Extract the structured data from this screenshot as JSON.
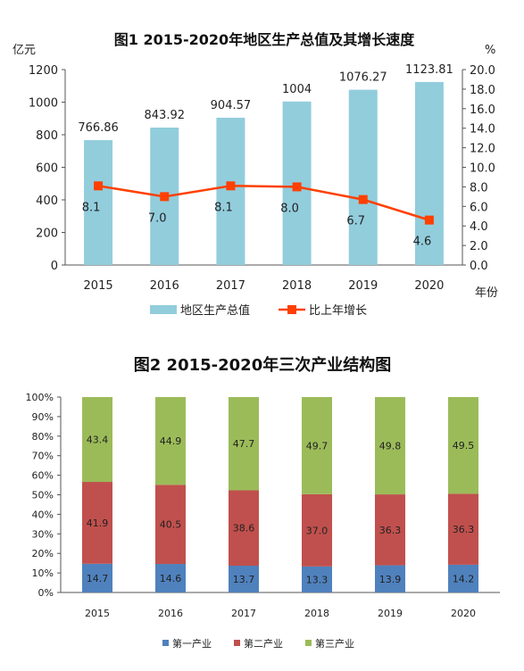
{
  "chart_data": [
    {
      "type": "bar",
      "title": "图1  2015-2020年地区生产总值及其增长速度",
      "ylabel": "亿元",
      "y2label": "%",
      "xlabel": "年份",
      "categories": [
        "2015",
        "2016",
        "2017",
        "2018",
        "2019",
        "2020"
      ],
      "ylim": [
        0,
        1200
      ],
      "yticks": [
        "0",
        "200",
        "400",
        "600",
        "800",
        "1000",
        "1200"
      ],
      "y2lim": [
        0,
        20
      ],
      "y2ticks": [
        "0.0",
        "2.0",
        "4.0",
        "6.0",
        "8.0",
        "10.0",
        "12.0",
        "14.0",
        "16.0",
        "18.0",
        "20.0"
      ],
      "grid": false,
      "legend_position": "bottom",
      "series": [
        {
          "name": "地区生产总值",
          "type": "bar",
          "axis": "left",
          "color": "#92cddc",
          "values": [
            766.86,
            843.92,
            904.57,
            1004,
            1076.27,
            1123.81
          ],
          "labels": [
            "766.86",
            "843.92",
            "904.57",
            "1004",
            "1076.27",
            "1123.81"
          ]
        },
        {
          "name": "比上年增长",
          "type": "line",
          "axis": "right",
          "color": "#ff4000",
          "values": [
            8.1,
            7.0,
            8.1,
            8.0,
            6.7,
            4.6
          ],
          "labels": [
            "8.1",
            "7.0",
            "8.1",
            "8.0",
            "6.7",
            "4.6"
          ]
        }
      ]
    },
    {
      "type": "bar",
      "stacked": true,
      "title": "图2  2015-2020年三次产业结构图",
      "categories": [
        "2015",
        "2016",
        "2017",
        "2018",
        "2019",
        "2020"
      ],
      "ylim": [
        0,
        100
      ],
      "yticks": [
        "0%",
        "10%",
        "20%",
        "30%",
        "40%",
        "50%",
        "60%",
        "70%",
        "80%",
        "90%",
        "100%"
      ],
      "grid": false,
      "legend_position": "bottom",
      "series": [
        {
          "name": "第一产业",
          "color": "#4f81bd",
          "values": [
            14.7,
            14.6,
            13.7,
            13.3,
            13.9,
            14.2
          ],
          "labels": [
            "14.7",
            "14.6",
            "13.7",
            "13.3",
            "13.9",
            "14.2"
          ]
        },
        {
          "name": "第二产业",
          "color": "#c0504d",
          "values": [
            41.9,
            40.5,
            38.6,
            37.0,
            36.3,
            36.3
          ],
          "labels": [
            "41.9",
            "40.5",
            "38.6",
            "37.0",
            "36.3",
            "36.3"
          ]
        },
        {
          "name": "第三产业",
          "color": "#9bbb59",
          "values": [
            43.4,
            44.9,
            47.7,
            49.7,
            49.8,
            49.5
          ],
          "labels": [
            "43.4",
            "44.9",
            "47.7",
            "49.7",
            "49.8",
            "49.5"
          ]
        }
      ]
    }
  ]
}
